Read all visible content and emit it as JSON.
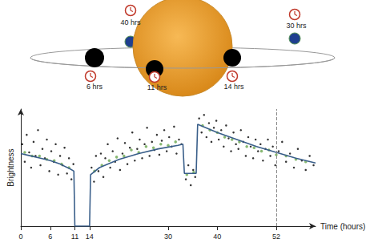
{
  "diagram": {
    "planets": [
      {
        "label": "6 hrs",
        "color": "#000000"
      },
      {
        "label": "11 hrs",
        "color": "#000000"
      },
      {
        "label": "14 hrs",
        "color": "#000000"
      },
      {
        "label": "30 hrs",
        "color": "#1f3f8f"
      },
      {
        "label": "40 hrs",
        "color": "#1f3f8f"
      }
    ]
  },
  "chart_data": {
    "type": "scatter",
    "x_label": "Time (hours)",
    "y_label": "Brightness",
    "xlim": [
      0,
      60
    ],
    "xticks": [
      0,
      6,
      11,
      14,
      30,
      40,
      52
    ],
    "ylim": [
      0,
      1
    ],
    "tick_labels": "x",
    "grid": false,
    "dashed_line_x": 52,
    "series": [
      {
        "type": "scatter",
        "color": "#000000",
        "marker": "circle",
        "x": [
          0.3,
          0.8,
          1.2,
          1.7,
          2.1,
          2.6,
          3.0,
          3.5,
          4.0,
          4.4,
          4.9,
          5.3,
          5.8,
          6.2,
          6.7,
          7.1,
          7.6,
          8.0,
          8.5,
          8.9,
          9.4,
          9.8,
          10.3,
          10.7,
          14.4,
          14.9,
          15.3,
          15.8,
          16.3,
          16.8,
          17.2,
          17.7,
          18.2,
          18.7,
          19.2,
          19.7,
          20.2,
          20.7,
          21.2,
          21.7,
          22.2,
          22.7,
          23.2,
          23.7,
          24.2,
          24.7,
          25.2,
          25.7,
          26.2,
          26.7,
          27.2,
          27.7,
          28.2,
          28.7,
          29.2,
          29.7,
          30.2,
          30.7,
          31.2,
          31.7,
          32.2,
          32.7,
          33.6,
          34.1,
          34.6,
          35.1,
          35.5,
          36.3,
          36.8,
          37.3,
          37.8,
          38.3,
          38.8,
          39.3,
          39.8,
          40.3,
          40.8,
          41.3,
          41.8,
          42.3,
          42.8,
          43.3,
          43.8,
          44.3,
          44.8,
          45.3,
          45.8,
          46.3,
          46.8,
          47.3,
          47.8,
          48.3,
          48.8,
          49.3,
          49.8,
          50.3,
          50.8,
          51.3,
          51.8,
          52.5,
          53.2,
          54.0,
          54.8,
          55.6,
          56.4,
          57.2,
          58.0,
          58.8,
          59.6
        ],
        "values": [
          0.7,
          0.55,
          0.78,
          0.63,
          0.5,
          0.72,
          0.6,
          0.82,
          0.52,
          0.66,
          0.58,
          0.74,
          0.47,
          0.64,
          0.55,
          0.7,
          0.44,
          0.6,
          0.52,
          0.67,
          0.45,
          0.58,
          0.4,
          0.53,
          0.5,
          0.38,
          0.6,
          0.47,
          0.62,
          0.42,
          0.58,
          0.7,
          0.5,
          0.64,
          0.55,
          0.75,
          0.48,
          0.62,
          0.71,
          0.53,
          0.67,
          0.8,
          0.56,
          0.66,
          0.74,
          0.58,
          0.7,
          0.84,
          0.6,
          0.72,
          0.65,
          0.78,
          0.61,
          0.73,
          0.82,
          0.64,
          0.76,
          0.68,
          0.85,
          0.62,
          0.74,
          0.7,
          0.4,
          0.52,
          0.35,
          0.48,
          0.42,
          0.92,
          0.8,
          0.95,
          0.76,
          0.88,
          0.72,
          0.84,
          0.9,
          0.74,
          0.82,
          0.68,
          0.86,
          0.75,
          0.64,
          0.8,
          0.7,
          0.66,
          0.82,
          0.72,
          0.6,
          0.76,
          0.68,
          0.58,
          0.74,
          0.64,
          0.7,
          0.56,
          0.66,
          0.74,
          0.6,
          0.68,
          0.52,
          0.64,
          0.72,
          0.55,
          0.62,
          0.5,
          0.66,
          0.56,
          0.48,
          0.6,
          0.52
        ]
      },
      {
        "type": "scatter",
        "color": "#6aa84f",
        "marker": "circle",
        "x": [
          0.8,
          2.3,
          3.8,
          5.3,
          6.8,
          8.3,
          9.8,
          15.0,
          16.5,
          18.0,
          19.5,
          21.0,
          22.5,
          24.0,
          25.5,
          27.0,
          28.5,
          30.0,
          31.5,
          33.8,
          35.2,
          37.0,
          38.5,
          40.0,
          41.5,
          43.0,
          44.5,
          46.0,
          47.5,
          49.0,
          50.5,
          52.0,
          54.0,
          56.0,
          58.0
        ],
        "values": [
          0.63,
          0.6,
          0.6,
          0.57,
          0.56,
          0.53,
          0.5,
          0.47,
          0.52,
          0.56,
          0.59,
          0.6,
          0.65,
          0.63,
          0.68,
          0.67,
          0.7,
          0.69,
          0.72,
          0.44,
          0.46,
          0.86,
          0.82,
          0.8,
          0.76,
          0.74,
          0.72,
          0.68,
          0.67,
          0.64,
          0.65,
          0.61,
          0.6,
          0.57,
          0.55
        ]
      },
      {
        "type": "line",
        "color": "#3a5f8a",
        "line_style": "solid",
        "x": [
          0,
          2,
          4,
          6,
          8,
          10,
          10.8,
          11,
          14,
          14.2,
          16,
          20,
          24,
          28,
          32,
          33,
          33.3,
          35.7,
          36,
          40,
          44,
          48,
          52,
          56,
          60
        ],
        "values": [
          0.62,
          0.6,
          0.58,
          0.56,
          0.53,
          0.49,
          0.47,
          0,
          0,
          0.44,
          0.5,
          0.57,
          0.62,
          0.66,
          0.69,
          0.7,
          0.45,
          0.45,
          0.87,
          0.8,
          0.74,
          0.68,
          0.63,
          0.58,
          0.54
        ]
      }
    ]
  }
}
